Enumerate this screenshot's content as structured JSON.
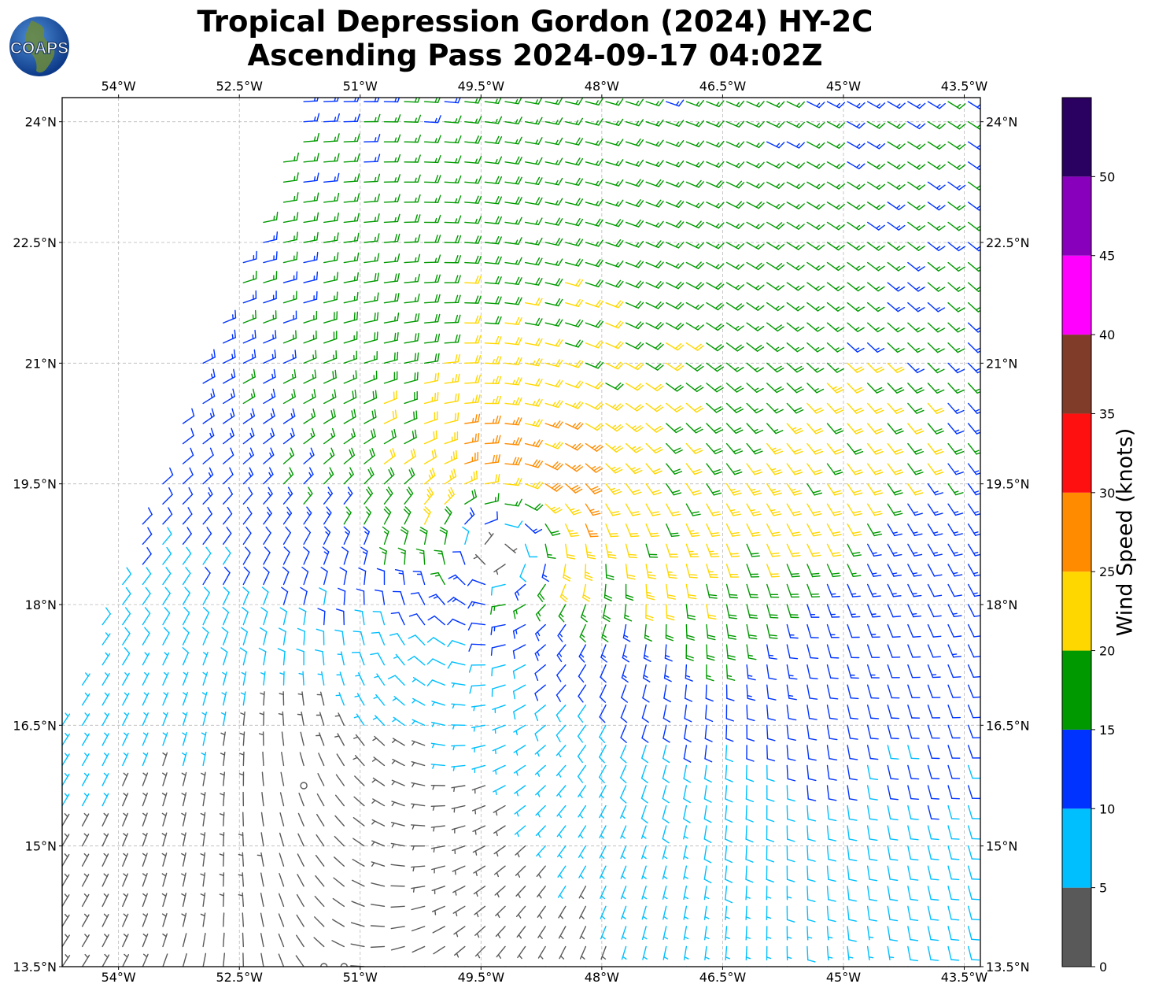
{
  "title": {
    "line1": "Tropical Depression Gordon (2024) HY-2C",
    "line2": "Ascending Pass 2024-09-17 04:02Z"
  },
  "logo": {
    "text": "COAPS",
    "icon": "globe-icon"
  },
  "map": {
    "lon_range": [
      -54.7,
      -43.3
    ],
    "lat_range": [
      13.5,
      24.3
    ],
    "lon_ticks": [
      {
        "value": -54.0,
        "label": "54°W"
      },
      {
        "value": -52.5,
        "label": "52.5°W"
      },
      {
        "value": -51.0,
        "label": "51°W"
      },
      {
        "value": -49.5,
        "label": "49.5°W"
      },
      {
        "value": -48.0,
        "label": "48°W"
      },
      {
        "value": -46.5,
        "label": "46.5°W"
      },
      {
        "value": -45.0,
        "label": "45°W"
      },
      {
        "value": -43.5,
        "label": "43.5°W"
      }
    ],
    "lat_ticks": [
      {
        "value": 24.0,
        "label": "24°N"
      },
      {
        "value": 22.5,
        "label": "22.5°N"
      },
      {
        "value": 21.0,
        "label": "21°N"
      },
      {
        "value": 19.5,
        "label": "19.5°N"
      },
      {
        "value": 18.0,
        "label": "18°N"
      },
      {
        "value": 16.5,
        "label": "16.5°N"
      },
      {
        "value": 15.0,
        "label": "15°N"
      },
      {
        "value": 13.5,
        "label": "13.5°N"
      }
    ],
    "grid": true,
    "storm_center": {
      "lon": -49.2,
      "lat": 18.9
    },
    "swath_west_edge": [
      [
        -51.7,
        24.3
      ],
      [
        -53.9,
        18.5
      ],
      [
        -54.7,
        16.6
      ]
    ]
  },
  "colorbar": {
    "label": "Wind Speed (knots)",
    "bounds": [
      0,
      5,
      10,
      15,
      20,
      25,
      30,
      35,
      40,
      45,
      50,
      55
    ],
    "tick_labels": [
      "0",
      "5",
      "10",
      "15",
      "20",
      "25",
      "30",
      "35",
      "40",
      "45",
      "50"
    ],
    "colors": [
      "#595959",
      "#00bfff",
      "#0033ff",
      "#009900",
      "#ffd700",
      "#ff8c00",
      "#ff1010",
      "#803c28",
      "#ff00ff",
      "#8800bb",
      "#2a0060"
    ]
  }
}
